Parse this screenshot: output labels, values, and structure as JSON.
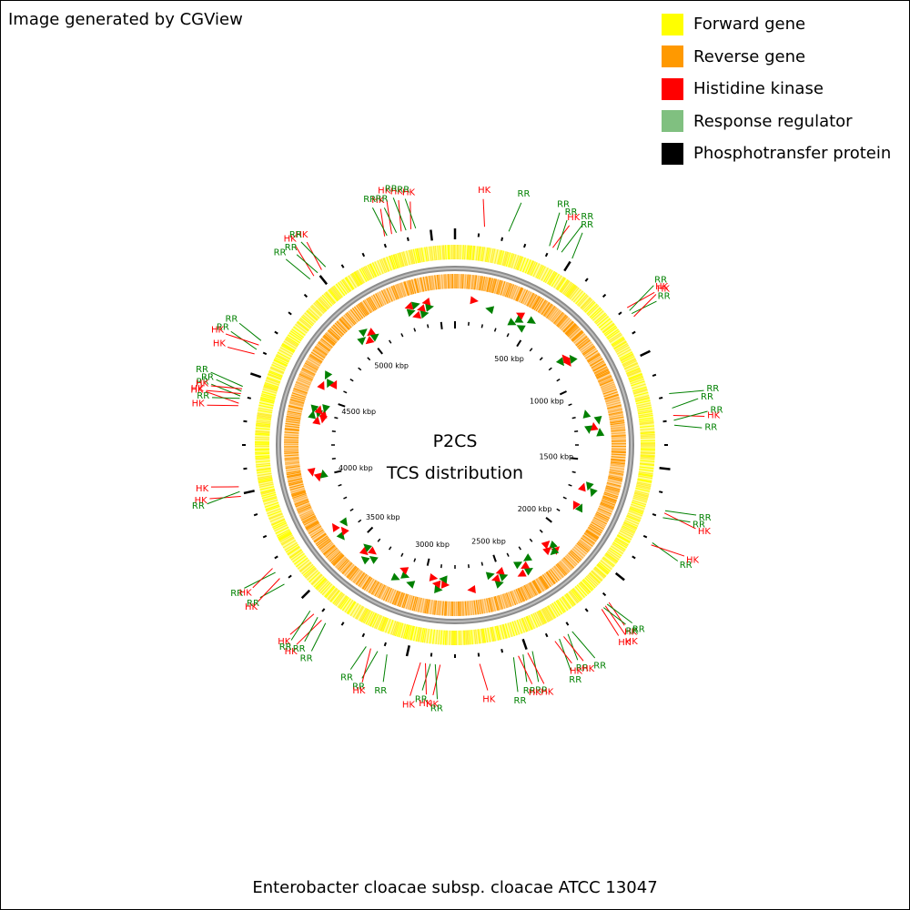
{
  "credit": "Image generated by CGView",
  "organism": "Enterobacter cloacae subsp. cloacae ATCC 13047",
  "center": {
    "line1": "P2CS",
    "line2": "TCS distribution"
  },
  "legend": [
    {
      "label": "Forward gene",
      "color": "#ffff00"
    },
    {
      "label": "Reverse gene",
      "color": "#ff9900"
    },
    {
      "label": "Histidine kinase",
      "color": "#ff0000"
    },
    {
      "label": "Response regulator",
      "color": "#80c080"
    },
    {
      "label": "Phosphotransfer protein",
      "color": "#000000"
    }
  ],
  "colors": {
    "forward": "#ffff66",
    "reverse": "#ffad40",
    "hk": "#ff0000",
    "rr": "#008000",
    "backbone": "#808080",
    "tick": "#000000"
  },
  "genome": {
    "length_kbp": 5600,
    "axis_labels": [
      "500 kbp",
      "1000 kbp",
      "1500 kbp",
      "2000 kbp",
      "2500 kbp",
      "3000 kbp",
      "3500 kbp",
      "4000 kbp",
      "4500 kbp",
      "5000 kbp"
    ],
    "axis_label_kbp": [
      500,
      1000,
      1500,
      2000,
      2500,
      3000,
      3500,
      4000,
      4500,
      5000
    ]
  },
  "labels": [
    {
      "t": "HK",
      "kbp": 120
    },
    {
      "t": "RR",
      "kbp": 220
    },
    {
      "t": "RR",
      "kbp": 395
    },
    {
      "t": "HK",
      "kbp": 410
    },
    {
      "t": "RR",
      "kbp": 430
    },
    {
      "t": "RR",
      "kbp": 450
    },
    {
      "t": "RR",
      "kbp": 500
    },
    {
      "t": "HK",
      "kbp": 800
    },
    {
      "t": "RR",
      "kbp": 815
    },
    {
      "t": "RR",
      "kbp": 830
    },
    {
      "t": "HK",
      "kbp": 845
    },
    {
      "t": "RR",
      "kbp": 1190
    },
    {
      "t": "RR",
      "kbp": 1250
    },
    {
      "t": "HK",
      "kbp": 1280
    },
    {
      "t": "RR",
      "kbp": 1300
    },
    {
      "t": "RR",
      "kbp": 1320
    },
    {
      "t": "RR",
      "kbp": 1670
    },
    {
      "t": "HK",
      "kbp": 1680
    },
    {
      "t": "RR",
      "kbp": 1700
    },
    {
      "t": "RR",
      "kbp": 1810
    },
    {
      "t": "HK",
      "kbp": 1820
    },
    {
      "t": "HK",
      "kbp": 2110
    },
    {
      "t": "RR",
      "kbp": 2120
    },
    {
      "t": "HK",
      "kbp": 2130
    },
    {
      "t": "RR",
      "kbp": 2140
    },
    {
      "t": "HK",
      "kbp": 2150
    },
    {
      "t": "RR",
      "kbp": 2300
    },
    {
      "t": "RR",
      "kbp": 2320
    },
    {
      "t": "HK",
      "kbp": 2340
    },
    {
      "t": "RR",
      "kbp": 2360
    },
    {
      "t": "HK",
      "kbp": 2380
    },
    {
      "t": "RR",
      "kbp": 2480
    },
    {
      "t": "HK",
      "kbp": 2500
    },
    {
      "t": "RR",
      "kbp": 2520
    },
    {
      "t": "HK",
      "kbp": 2540
    },
    {
      "t": "RR",
      "kbp": 2560
    },
    {
      "t": "HK",
      "kbp": 2700
    },
    {
      "t": "HK",
      "kbp": 2860
    },
    {
      "t": "RR",
      "kbp": 2880
    },
    {
      "t": "RR",
      "kbp": 2900
    },
    {
      "t": "HK",
      "kbp": 2920
    },
    {
      "t": "HK",
      "kbp": 2940
    },
    {
      "t": "RR",
      "kbp": 3080
    },
    {
      "t": "RR",
      "kbp": 3120
    },
    {
      "t": "HK",
      "kbp": 3150
    },
    {
      "t": "RR",
      "kbp": 3170
    },
    {
      "t": "RR",
      "kbp": 3360
    },
    {
      "t": "HK",
      "kbp": 3380
    },
    {
      "t": "RR",
      "kbp": 3400
    },
    {
      "t": "HK",
      "kbp": 3420
    },
    {
      "t": "RR",
      "kbp": 3440
    },
    {
      "t": "RR",
      "kbp": 3590
    },
    {
      "t": "HK",
      "kbp": 3620
    },
    {
      "t": "RR",
      "kbp": 3650
    },
    {
      "t": "HK",
      "kbp": 3670
    },
    {
      "t": "HK",
      "kbp": 3990
    },
    {
      "t": "RR",
      "kbp": 4010
    },
    {
      "t": "HK",
      "kbp": 4030
    },
    {
      "t": "HK",
      "kbp": 4360
    },
    {
      "t": "HK",
      "kbp": 4370
    },
    {
      "t": "RR",
      "kbp": 4390
    },
    {
      "t": "RR",
      "kbp": 4400
    },
    {
      "t": "HK",
      "kbp": 4410
    },
    {
      "t": "RR",
      "kbp": 4420
    },
    {
      "t": "HK",
      "kbp": 4430
    },
    {
      "t": "RR",
      "kbp": 4440
    },
    {
      "t": "HK",
      "kbp": 4580
    },
    {
      "t": "RR",
      "kbp": 4600
    },
    {
      "t": "HK",
      "kbp": 4620
    },
    {
      "t": "RR",
      "kbp": 4640
    },
    {
      "t": "RR",
      "kbp": 4960
    },
    {
      "t": "HK",
      "kbp": 4980
    },
    {
      "t": "RR",
      "kbp": 5000
    },
    {
      "t": "HK",
      "kbp": 5020
    },
    {
      "t": "RR",
      "kbp": 5040
    },
    {
      "t": "HK",
      "kbp": 5310
    },
    {
      "t": "RR",
      "kbp": 5320
    },
    {
      "t": "HK",
      "kbp": 5340
    },
    {
      "t": "RR",
      "kbp": 5360
    },
    {
      "t": "HK",
      "kbp": 5380
    },
    {
      "t": "RR",
      "kbp": 5400
    },
    {
      "t": "HK",
      "kbp": 5420
    },
    {
      "t": "RR",
      "kbp": 5440
    }
  ]
}
